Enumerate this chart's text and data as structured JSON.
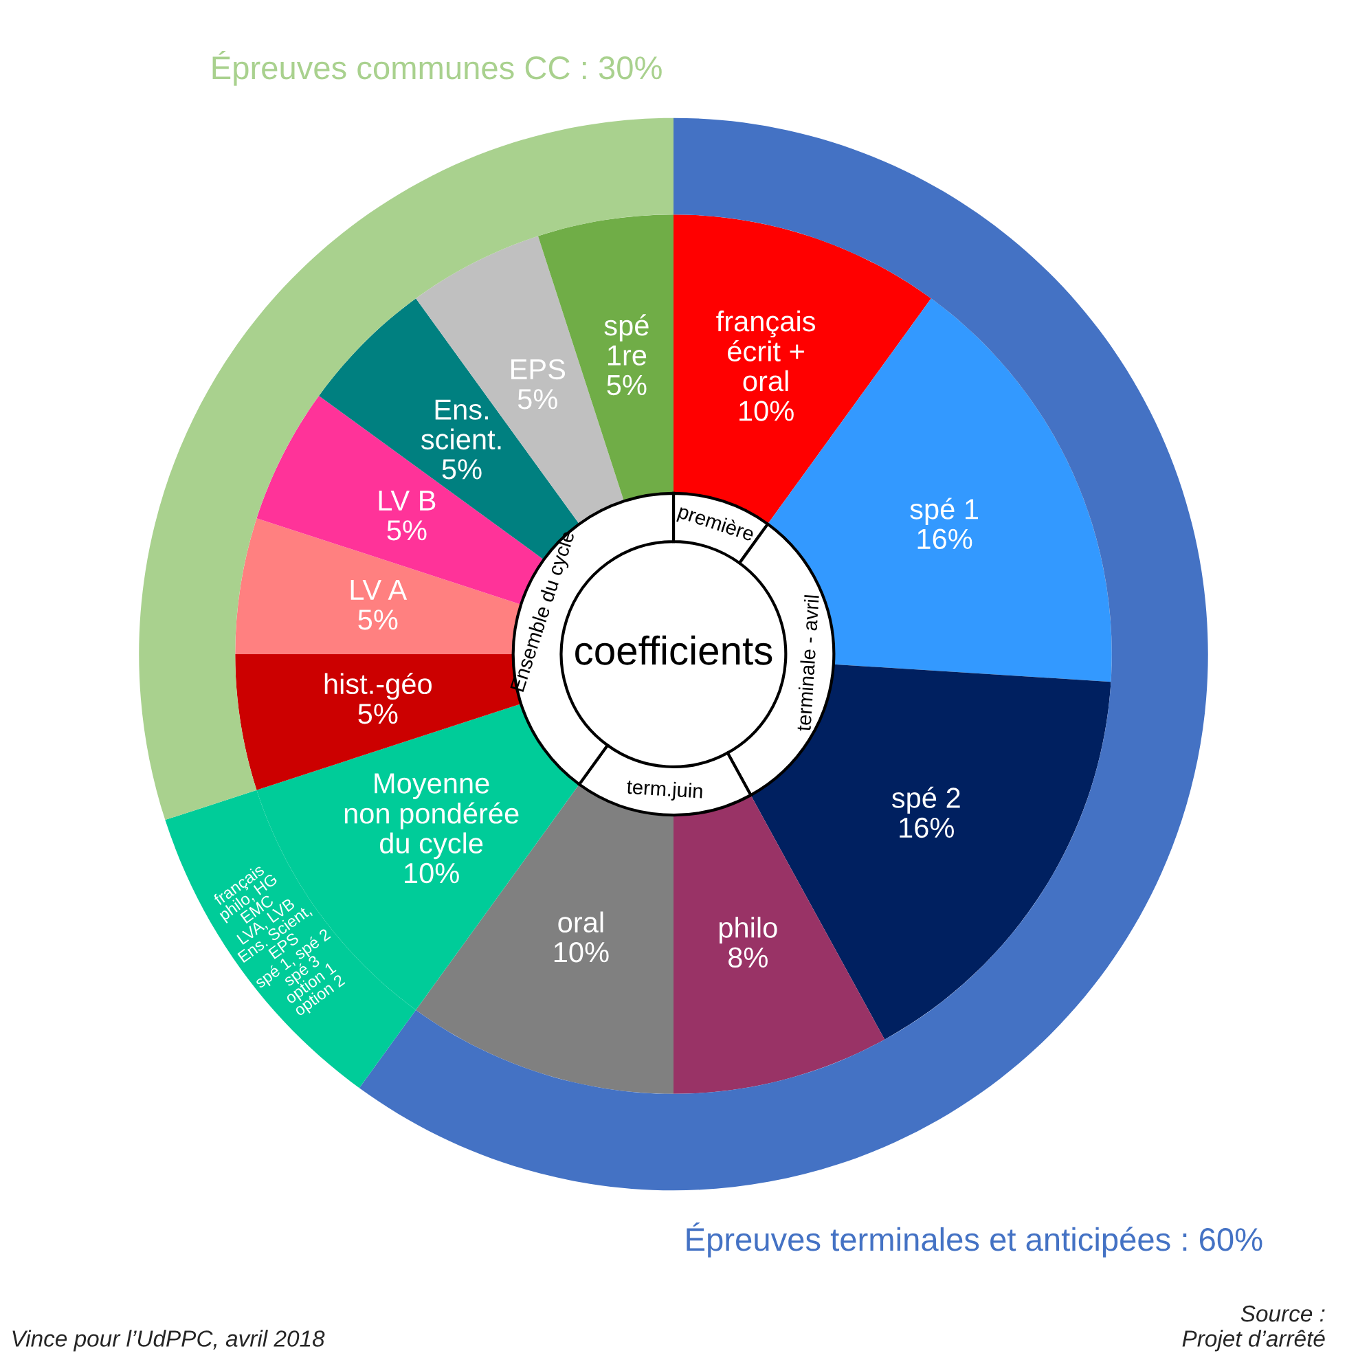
{
  "chart_data": {
    "type": "donut",
    "title": "coefficients",
    "annotations": [
      "Vince pour l’UdPPC, avril 2018",
      "Source :\nProjet d’arrêté"
    ],
    "categories": [
      "français\nécrit +\noral",
      "spé 1",
      "spé 2",
      "philo",
      "oral",
      "Moyenne\nnon pondérée\ndu cycle",
      "hist.-géo",
      "LV A",
      "LV B",
      "Ens.\nscient.",
      "EPS",
      "spé\n1re"
    ],
    "series": [
      {
        "values": [
          10,
          16,
          16,
          8,
          10,
          10,
          5,
          5,
          5,
          5,
          5,
          5
        ],
        "value_labels": [
          "10%",
          "16%",
          "16%",
          "8%",
          "10%",
          "10%",
          "5%",
          "5%",
          "5%",
          "5%",
          "5%",
          "5%"
        ],
        "colors": [
          "#ff0000",
          "#3399ff",
          "#002060",
          "#993366",
          "#808080",
          "#00cc99",
          "#cc0000",
          "#ff8080",
          "#ff3399",
          "#008080",
          "#c0c0c0",
          "#70ad47"
        ]
      },
      {
        "values": [
          10,
          32,
          null,
          18,
          null,
          40,
          null,
          null,
          null,
          null,
          null,
          null
        ],
        "value_labels": [
          "première",
          "terminale - avril",
          null,
          "term.juin",
          null,
          "Ensemble du cycle",
          null,
          null,
          null,
          null,
          null,
          null
        ],
        "colors": [
          "#ffffff",
          "#ffffff",
          null,
          "#ffffff",
          null,
          "#ffffff",
          null,
          null,
          null,
          null,
          null,
          null
        ]
      },
      {
        "values": [
          60,
          null,
          null,
          null,
          null,
          10,
          30,
          null,
          null,
          null,
          null,
          null
        ],
        "value_labels": [
          "Épreuves terminales et anticipées : 60%",
          null,
          null,
          null,
          null,
          "français\nphilo, HG\nEMC\nLVA, LVB\nEns. Scient,\nEPS\nspé 1, spé 2\nspé 3\noption 1\noption 2",
          "Épreuves communes CC : 30%",
          null,
          null,
          null,
          null,
          null
        ],
        "colors": [
          "#4472c4",
          null,
          null,
          null,
          null,
          "#00cc99",
          "#a9d18e",
          null,
          null,
          null,
          null,
          null
        ]
      }
    ]
  }
}
